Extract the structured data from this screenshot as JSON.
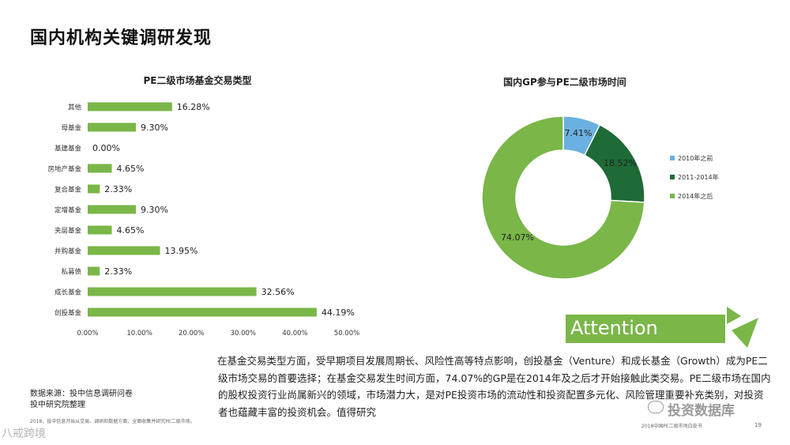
{
  "page": {
    "title": "国内机构关键调研发现",
    "body_text": "在基金交易类型方面，受早期项目发展周期长、风险性高等特点影响，创投基金（Venture）和成长基金（Growth）成为PE二级市场交易的首要选择；在基金交易发生时间方面，74.07%的GP是在2014年及之后才开始接触此类交易。PE二级市场在国内的股权投资行业尚属新兴的领域，市场潜力大，是对PE投资市场的流动性和投资配置多元化、风险管理重要补充类别，对投资者也蕴藏丰富的投资机会。值得研究",
    "source_line1": "数据来源：投中信息调研问卷",
    "source_line2": "投中研究院整理",
    "footnote": "2018，投中信息开始从交易、调研和数据方面，全面收集并研究PE二级市场。",
    "footer_report": "2018中国PE二级市场白皮书",
    "page_number": "19",
    "attention_label": "Attention",
    "watermark_left": "八戒跨境",
    "watermark_right": "投资数据库"
  },
  "chart_data": [
    {
      "type": "bar",
      "orientation": "horizontal",
      "title": "PE二级市场基金交易类型",
      "categories": [
        "其他",
        "母基金",
        "基建基金",
        "房地产基金",
        "复合基金",
        "定增基金",
        "夹层基金",
        "并购基金",
        "私募债",
        "成长基金",
        "创投基金"
      ],
      "values": [
        16.28,
        9.3,
        0.0,
        4.65,
        2.33,
        9.3,
        4.65,
        13.95,
        2.33,
        32.56,
        44.19
      ],
      "value_labels": [
        "16.28%",
        "9.30%",
        "0.00%",
        "4.65%",
        "2.33%",
        "9.30%",
        "4.65%",
        "13.95%",
        "2.33%",
        "32.56%",
        "44.19%"
      ],
      "xlim": [
        0,
        50
      ],
      "xticks": [
        "0.00%",
        "10.00%",
        "20.00%",
        "30.00%",
        "40.00%",
        "50.00%"
      ],
      "color": "#7ab648"
    },
    {
      "type": "pie",
      "donut": true,
      "title": "国内GP参与PE二级市场时间",
      "slices": [
        {
          "label": "2010年之前",
          "value": 7.41,
          "value_label": "7.41%",
          "color": "#6ab0e0"
        },
        {
          "label": "2011-2014年",
          "value": 18.52,
          "value_label": "18.52%",
          "color": "#1e6b36"
        },
        {
          "label": "2014年之后",
          "value": 74.07,
          "value_label": "74.07%",
          "color": "#7ab648"
        }
      ],
      "legend_position": "right"
    }
  ]
}
